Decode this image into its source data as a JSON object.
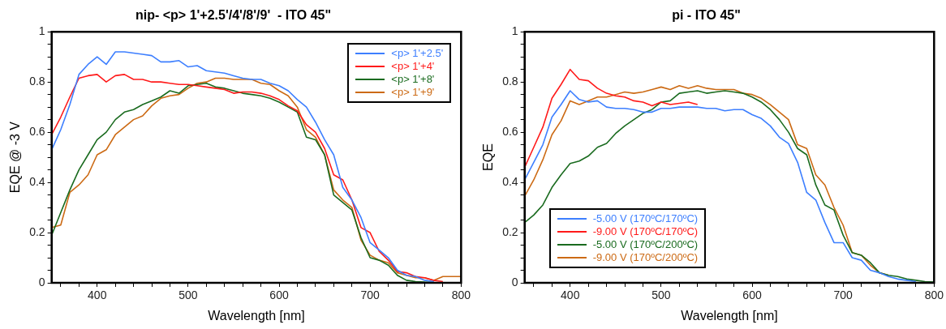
{
  "chart_data": [
    {
      "type": "line",
      "title": "nip- <p> 1'+2.5'/4'/8'/9'  - ITO 45\"",
      "xlabel": "Wavelength [nm]",
      "ylabel": "EQE @ -3 V",
      "legend": "top right",
      "grid": false,
      "x": [
        350,
        360,
        370,
        380,
        390,
        400,
        410,
        420,
        430,
        440,
        450,
        460,
        470,
        480,
        490,
        500,
        510,
        520,
        530,
        540,
        550,
        560,
        570,
        580,
        590,
        600,
        610,
        620,
        630,
        640,
        650,
        660,
        670,
        680,
        690,
        700,
        710,
        720,
        730,
        740,
        750,
        760,
        770,
        780,
        790,
        800
      ],
      "xlim": [
        350,
        800
      ],
      "ylim": [
        0,
        1
      ],
      "xticks": [
        {
          "value": 360,
          "label": null
        },
        {
          "value": 380,
          "label": null
        },
        400,
        {
          "value": 420,
          "label": null
        },
        {
          "value": 440,
          "label": null
        },
        {
          "value": 460,
          "label": null
        },
        {
          "value": 480,
          "label": null
        },
        500,
        {
          "value": 520,
          "label": null
        },
        {
          "value": 540,
          "label": null
        },
        {
          "value": 560,
          "label": null
        },
        {
          "value": 580,
          "label": null
        },
        600,
        {
          "value": 620,
          "label": null
        },
        {
          "value": 640,
          "label": null
        },
        {
          "value": 660,
          "label": null
        },
        {
          "value": 680,
          "label": null
        },
        700,
        {
          "value": 720,
          "label": null
        },
        {
          "value": 740,
          "label": null
        },
        {
          "value": 760,
          "label": null
        },
        {
          "value": 780,
          "label": null
        },
        800
      ],
      "yticks": [
        0,
        {
          "value": 0.05,
          "label": null
        },
        {
          "value": 0.1,
          "label": null
        },
        {
          "value": 0.15,
          "label": null
        },
        0.2,
        {
          "value": 0.25,
          "label": null
        },
        {
          "value": 0.3,
          "label": null
        },
        {
          "value": 0.35,
          "label": null
        },
        0.4,
        {
          "value": 0.45,
          "label": null
        },
        {
          "value": 0.5,
          "label": null
        },
        {
          "value": 0.55,
          "label": null
        },
        0.6,
        {
          "value": 0.65,
          "label": null
        },
        {
          "value": 0.7,
          "label": null
        },
        {
          "value": 0.75,
          "label": null
        },
        0.8,
        {
          "value": 0.85,
          "label": null
        },
        {
          "value": 0.9,
          "label": null
        },
        {
          "value": 0.95,
          "label": null
        },
        1
      ],
      "series": [
        {
          "name": "<p> 1'+2.5'",
          "color": "#3d7fff",
          "values": [
            0.53,
            0.61,
            0.71,
            0.83,
            0.87,
            0.9,
            0.87,
            0.92,
            0.92,
            0.915,
            0.91,
            0.905,
            0.88,
            0.88,
            0.885,
            0.86,
            0.865,
            0.845,
            0.84,
            0.835,
            0.825,
            0.815,
            0.81,
            0.81,
            0.795,
            0.785,
            0.765,
            0.73,
            0.7,
            0.64,
            0.57,
            0.51,
            0.38,
            0.33,
            0.26,
            0.16,
            0.13,
            0.1,
            0.05,
            0.03,
            0.025,
            0.01,
            0.005,
            null,
            null,
            null
          ]
        },
        {
          "name": "<p> 1'+4'",
          "color": "#ff1a1a",
          "values": [
            0.59,
            0.66,
            0.74,
            0.815,
            0.825,
            0.83,
            0.8,
            0.825,
            0.83,
            0.81,
            0.81,
            0.8,
            0.8,
            0.795,
            0.79,
            0.79,
            0.785,
            0.78,
            0.775,
            0.77,
            0.755,
            0.76,
            0.76,
            0.755,
            0.745,
            0.73,
            0.705,
            0.685,
            0.63,
            0.6,
            0.535,
            0.43,
            0.41,
            0.33,
            0.22,
            0.2,
            0.125,
            0.09,
            0.045,
            0.04,
            0.025,
            0.02,
            0.01,
            0.005,
            null,
            null
          ]
        },
        {
          "name": "<p> 1'+8'",
          "color": "#1a6b1f",
          "values": [
            0.19,
            0.28,
            0.37,
            0.45,
            0.51,
            0.57,
            0.6,
            0.65,
            0.68,
            0.69,
            0.71,
            0.725,
            0.74,
            0.765,
            0.755,
            0.785,
            0.79,
            0.795,
            0.78,
            0.775,
            0.765,
            0.755,
            0.75,
            0.745,
            0.735,
            0.72,
            0.7,
            0.68,
            0.58,
            0.57,
            0.51,
            0.35,
            0.32,
            0.29,
            0.18,
            0.1,
            0.09,
            0.07,
            0.03,
            0.01,
            0.005,
            0.003,
            0.002,
            null,
            null,
            null
          ]
        },
        {
          "name": "<p> 1'+9'",
          "color": "#cc6a14",
          "values": [
            0.22,
            0.23,
            0.36,
            0.39,
            0.43,
            0.51,
            0.53,
            0.59,
            0.62,
            0.65,
            0.665,
            0.705,
            0.735,
            0.745,
            0.75,
            0.775,
            0.795,
            0.8,
            0.815,
            0.815,
            0.81,
            0.81,
            0.81,
            0.795,
            0.79,
            0.765,
            0.745,
            0.7,
            0.61,
            0.58,
            0.51,
            0.37,
            0.33,
            0.3,
            0.17,
            0.11,
            0.09,
            0.08,
            0.04,
            0.03,
            0.02,
            0.02,
            0.01,
            0.025,
            0.025,
            0.025
          ]
        }
      ]
    },
    {
      "type": "line",
      "title": "pi - ITO 45\"",
      "xlabel": "Wavelength [nm]",
      "ylabel": "EQE",
      "legend": "bottom left",
      "grid": false,
      "x": [
        350,
        360,
        370,
        380,
        390,
        400,
        410,
        420,
        430,
        440,
        450,
        460,
        470,
        480,
        490,
        500,
        510,
        520,
        530,
        540,
        550,
        560,
        570,
        580,
        590,
        600,
        610,
        620,
        630,
        640,
        650,
        660,
        670,
        680,
        690,
        700,
        710,
        720,
        730,
        740,
        750,
        760,
        770,
        780,
        790,
        800
      ],
      "xlim": [
        350,
        800
      ],
      "ylim": [
        0,
        1
      ],
      "xticks": [
        {
          "value": 360,
          "label": null
        },
        {
          "value": 380,
          "label": null
        },
        400,
        {
          "value": 420,
          "label": null
        },
        {
          "value": 440,
          "label": null
        },
        {
          "value": 460,
          "label": null
        },
        {
          "value": 480,
          "label": null
        },
        500,
        {
          "value": 520,
          "label": null
        },
        {
          "value": 540,
          "label": null
        },
        {
          "value": 560,
          "label": null
        },
        {
          "value": 580,
          "label": null
        },
        600,
        {
          "value": 620,
          "label": null
        },
        {
          "value": 640,
          "label": null
        },
        {
          "value": 660,
          "label": null
        },
        {
          "value": 680,
          "label": null
        },
        700,
        {
          "value": 720,
          "label": null
        },
        {
          "value": 740,
          "label": null
        },
        {
          "value": 760,
          "label": null
        },
        {
          "value": 780,
          "label": null
        },
        800
      ],
      "yticks": [
        0,
        {
          "value": 0.05,
          "label": null
        },
        {
          "value": 0.1,
          "label": null
        },
        {
          "value": 0.15,
          "label": null
        },
        0.2,
        {
          "value": 0.25,
          "label": null
        },
        {
          "value": 0.3,
          "label": null
        },
        {
          "value": 0.35,
          "label": null
        },
        0.4,
        {
          "value": 0.45,
          "label": null
        },
        {
          "value": 0.5,
          "label": null
        },
        {
          "value": 0.55,
          "label": null
        },
        0.6,
        {
          "value": 0.65,
          "label": null
        },
        {
          "value": 0.7,
          "label": null
        },
        {
          "value": 0.75,
          "label": null
        },
        0.8,
        {
          "value": 0.85,
          "label": null
        },
        {
          "value": 0.9,
          "label": null
        },
        {
          "value": 0.95,
          "label": null
        },
        1
      ],
      "series": [
        {
          "name": "-5.00 V (170ºC/170ºC)",
          "color": "#3d7fff",
          "values": [
            0.41,
            0.48,
            0.55,
            0.66,
            0.71,
            0.765,
            0.73,
            0.72,
            0.725,
            0.7,
            0.695,
            0.695,
            0.69,
            0.68,
            0.68,
            0.695,
            0.695,
            0.7,
            0.7,
            0.7,
            0.695,
            0.695,
            0.685,
            0.69,
            0.69,
            0.67,
            0.655,
            0.625,
            0.58,
            0.555,
            0.48,
            0.36,
            0.33,
            0.24,
            0.16,
            0.16,
            0.1,
            0.09,
            0.05,
            0.04,
            0.025,
            0.015,
            0.01,
            0.005,
            null,
            null
          ]
        },
        {
          "name": "-9.00 V (170ºC/170ºC)",
          "color": "#ff1a1a",
          "x": [
            350,
            360,
            370,
            380,
            390,
            400,
            410,
            420,
            430,
            440,
            450,
            460,
            470,
            480,
            490,
            500,
            510,
            520,
            530,
            540
          ],
          "values": [
            0.46,
            0.54,
            0.62,
            0.735,
            0.79,
            0.85,
            0.81,
            0.805,
            0.775,
            0.755,
            0.745,
            0.74,
            0.725,
            0.72,
            0.705,
            0.72,
            0.71,
            0.715,
            0.72,
            0.71
          ]
        },
        {
          "name": "-5.00 V (170ºC/200ºC)",
          "color": "#1a6b1f",
          "values": [
            0.24,
            0.27,
            0.31,
            0.38,
            0.43,
            0.475,
            0.485,
            0.505,
            0.54,
            0.555,
            0.595,
            0.625,
            0.65,
            0.675,
            0.69,
            0.72,
            0.725,
            0.755,
            0.76,
            0.765,
            0.755,
            0.76,
            0.765,
            0.76,
            0.755,
            0.74,
            0.72,
            0.69,
            0.65,
            0.6,
            0.535,
            0.51,
            0.39,
            0.31,
            0.29,
            0.19,
            0.12,
            0.11,
            0.08,
            0.04,
            0.03,
            0.025,
            0.015,
            0.01,
            0.005,
            0.003
          ]
        },
        {
          "name": "-9.00 V (170ºC/200ºC)",
          "color": "#cc6a14",
          "values": [
            0.345,
            0.41,
            0.49,
            0.59,
            0.645,
            0.725,
            0.71,
            0.725,
            0.74,
            0.74,
            0.75,
            0.76,
            0.755,
            0.76,
            0.77,
            0.78,
            0.77,
            0.785,
            0.775,
            0.785,
            0.775,
            0.77,
            0.77,
            0.77,
            0.755,
            0.75,
            0.735,
            0.71,
            0.68,
            0.65,
            0.55,
            0.535,
            0.43,
            0.39,
            0.3,
            0.23,
            0.12,
            0.11,
            0.07,
            0.04,
            0.03,
            null,
            null,
            null,
            null,
            null
          ]
        }
      ]
    }
  ]
}
